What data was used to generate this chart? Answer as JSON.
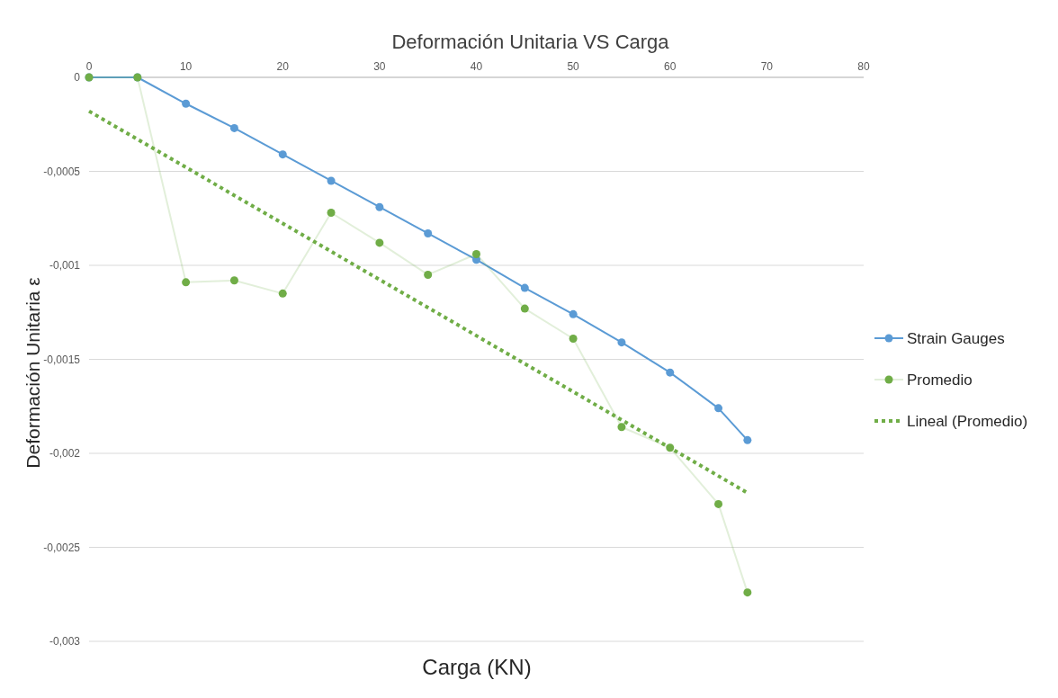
{
  "chart_data": {
    "type": "line",
    "title": "Deformación Unitaria VS Carga",
    "xlabel": "Carga  (KN)",
    "ylabel": "Deformación Unitaria ε",
    "xlim": [
      0,
      80
    ],
    "xticks": [
      0,
      10,
      20,
      30,
      40,
      50,
      60,
      70,
      80
    ],
    "ylim": [
      -0.003,
      0
    ],
    "yticks": [
      {
        "value": 0,
        "label": "0"
      },
      {
        "value": -0.0005,
        "label": "-0,0005"
      },
      {
        "value": -0.001,
        "label": "-0,001"
      },
      {
        "value": -0.0015,
        "label": "-0,0015"
      },
      {
        "value": -0.002,
        "label": "-0,002"
      },
      {
        "value": -0.0025,
        "label": "-0,0025"
      },
      {
        "value": -0.003,
        "label": "-0,003"
      }
    ],
    "grid": "y",
    "legend": "right",
    "marker": "circle",
    "series": [
      {
        "name": "Strain Gauges",
        "color": "#5b9bd5",
        "x": [
          0,
          5,
          10,
          15,
          20,
          25,
          30,
          35,
          40,
          45,
          50,
          55,
          60,
          65,
          68
        ],
        "values": [
          0,
          0,
          -0.00014,
          -0.00027,
          -0.00041,
          -0.00055,
          -0.00069,
          -0.00083,
          -0.00097,
          -0.00112,
          -0.00126,
          -0.00141,
          -0.00157,
          -0.00176,
          -0.00193
        ]
      },
      {
        "name": "Promedio",
        "color": "#70ad47",
        "x": [
          0,
          5,
          10,
          15,
          20,
          25,
          30,
          35,
          40,
          45,
          50,
          55,
          60,
          65,
          68
        ],
        "values": [
          0,
          0,
          -0.00109,
          -0.00108,
          -0.00115,
          -0.00072,
          -0.00088,
          -0.00105,
          -0.00094,
          -0.00123,
          -0.00139,
          -0.00186,
          -0.00197,
          -0.00227,
          -0.00274
        ]
      },
      {
        "name": "Lineal (Promedio)",
        "color": "#70ad47",
        "x": [
          0,
          68
        ],
        "values": [
          -0.00018,
          -0.00221
        ],
        "marker": "none",
        "line_style": "dotted"
      }
    ]
  }
}
